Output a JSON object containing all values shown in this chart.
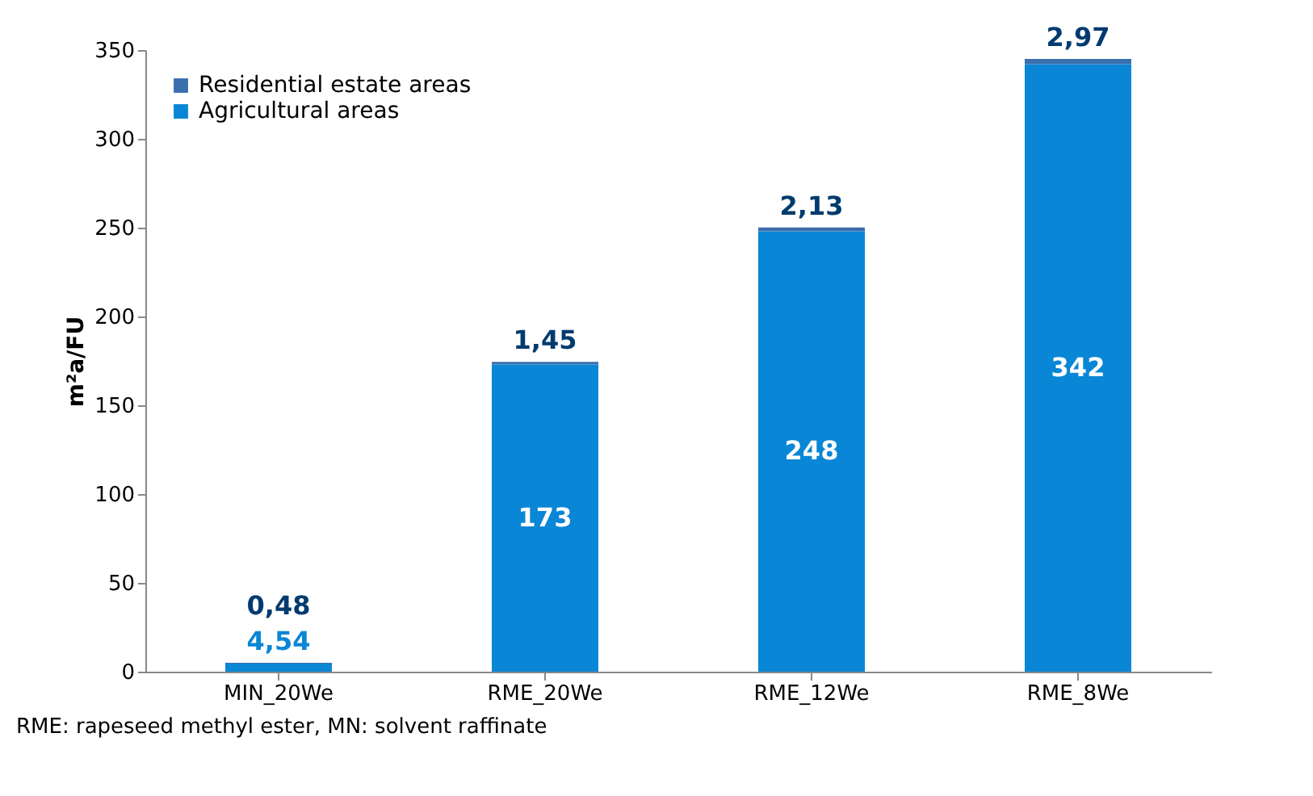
{
  "chart_data": {
    "type": "bar",
    "stacked": true,
    "ylabel": "m²a/FU",
    "categories": [
      "MIN_20We",
      "RME_20We",
      "RME_12We",
      "RME_8We"
    ],
    "series": [
      {
        "name": "Agricultural areas",
        "color": "#0a86d6",
        "values": [
          4.54,
          173,
          248,
          342
        ],
        "value_labels": [
          "4,54",
          "173",
          "248",
          "342"
        ]
      },
      {
        "name": "Residential estate areas",
        "color": "#3a6fae",
        "values": [
          0.48,
          1.45,
          2.13,
          2.97
        ],
        "value_labels": [
          "0,48",
          "1,45",
          "2,13",
          "2,97"
        ]
      }
    ],
    "ylim": [
      0,
      350
    ],
    "yticks": [
      0,
      50,
      100,
      150,
      200,
      250,
      300,
      350
    ],
    "grid": false,
    "legend": "top left",
    "annotations": [
      "RME: rapeseed methyl ester, MN: solvent raffinate"
    ]
  }
}
